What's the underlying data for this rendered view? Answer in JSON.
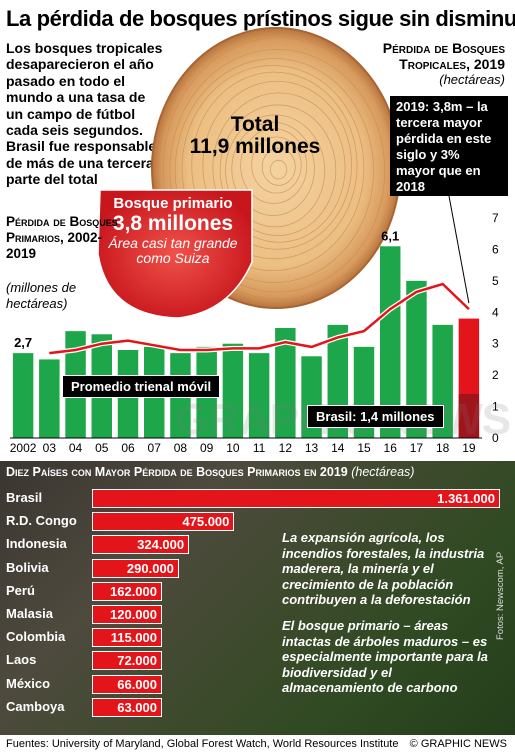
{
  "title": "La pérdida de bosques prístinos sigue sin disminuir",
  "intro": "Los bosques tropicales desaparecieron el año pasado en todo el mundo a una tasa de un campo de fútbol cada seis segundos. Brasil fue responsable de más de una tercera parte del total",
  "tropical": {
    "title": "Pérdida de Bosques Tropicales, 2019",
    "unit": "(hectáreas)",
    "total_label": "Total",
    "total_value": "11,9 millones",
    "primary_label": "Bosque primario",
    "primary_value": "3,8 millones",
    "primary_note": "Área casi tan grande como Suiza"
  },
  "callout": "2019: 3,8m – la tercera mayor pérdida en este siglo y 3% mayor que en 2018",
  "chart_data": [
    {
      "type": "bar",
      "title": "Pérdida de Bosques Primarios, 2002-2019",
      "ylabel": "(millones de hectáreas)",
      "categories": [
        "2002",
        "03",
        "04",
        "05",
        "06",
        "07",
        "08",
        "09",
        "10",
        "11",
        "12",
        "13",
        "14",
        "15",
        "16",
        "17",
        "18",
        "19"
      ],
      "values": [
        2.7,
        2.5,
        3.4,
        3.3,
        2.8,
        2.9,
        2.7,
        2.9,
        3.0,
        2.7,
        3.5,
        2.6,
        3.6,
        2.9,
        6.1,
        5.0,
        3.6,
        3.8
      ],
      "data_labels": {
        "0": "2,7",
        "14": "6,1"
      },
      "ylim": [
        0,
        7
      ],
      "yticks": [
        0,
        1,
        2,
        3,
        4,
        5,
        6,
        7
      ],
      "average_label": "Promedio trienal móvil",
      "average": [
        null,
        2.7,
        2.8,
        3.0,
        3.1,
        2.95,
        2.8,
        2.8,
        2.85,
        2.85,
        3.05,
        2.9,
        3.2,
        3.4,
        4.1,
        4.65,
        4.9,
        4.1
      ],
      "brasil_label": "Brasil: 1,4 millones",
      "brasil_2019": 1.4,
      "colors": {
        "bars": "#1ea64a",
        "highlight": "#e3151a",
        "brasil": "#a0141c",
        "average": "#e3151a"
      }
    },
    {
      "type": "bar",
      "orientation": "horizontal",
      "title": "Diez Países con Mayor Pérdida de Bosques Primarios en 2019",
      "unit": "(hectáreas)",
      "categories": [
        "Brasil",
        "R.D. Congo",
        "Indonesia",
        "Bolivia",
        "Perú",
        "Malasia",
        "Colombia",
        "Laos",
        "México",
        "Camboya"
      ],
      "values": [
        1361000,
        475000,
        324000,
        290000,
        162000,
        120000,
        115000,
        72000,
        66000,
        63000
      ],
      "value_labels": [
        "1.361.000",
        "475.000",
        "324.000",
        "290.000",
        "162.000",
        "120.000",
        "115.000",
        "72.000",
        "66.000",
        "63.000"
      ]
    }
  ],
  "notes": [
    "La expansión agrícola, los incendios forestales, la industria maderera, la minería y el crecimiento de la población contribuyen a la deforestación",
    "El bosque primario – áreas intactas de árboles maduros – es especialmente importante para la biodiversidad y el almacenamiento de carbono"
  ],
  "photo_credit": "Fotos: Newscom, AP",
  "watermark": "GRAPHIC NEWS",
  "footer": {
    "sources": "Fuentes: University of Maryland, Global Forest Watch, World Resources Institute",
    "brand": "© GRAPHIC NEWS"
  }
}
